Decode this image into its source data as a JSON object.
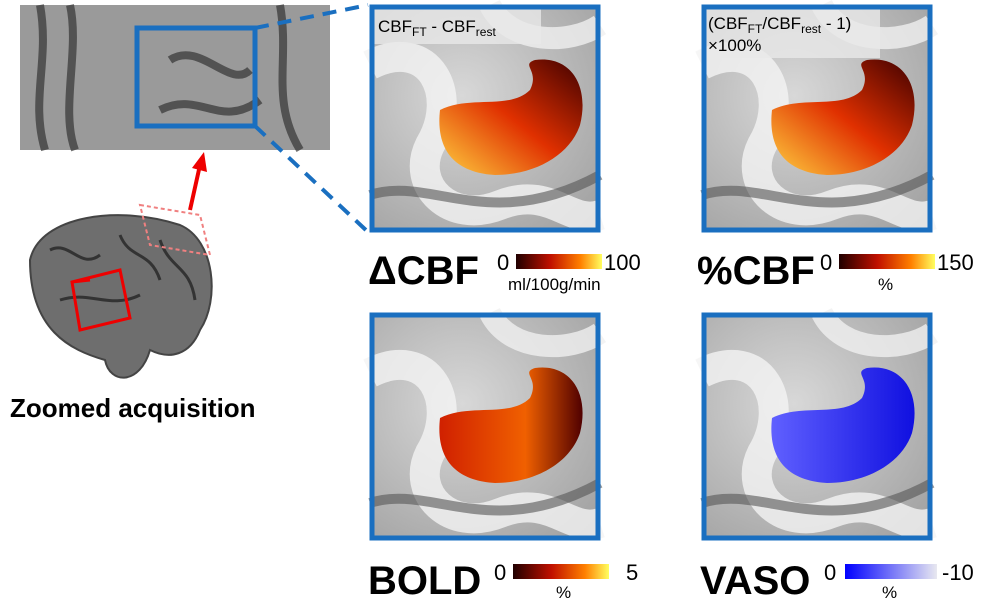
{
  "zoom": {
    "label": "Zoomed acquisition"
  },
  "panels": [
    {
      "label": "ΔCBF",
      "formula": {
        "line1": [
          "CBF",
          "FT",
          " - CBF",
          "rest"
        ]
      },
      "colorbar": {
        "min": 0,
        "max": 100,
        "unit": "ml/100g/min"
      }
    },
    {
      "label": "%CBF",
      "formula": {
        "line1": [
          "(CBF",
          "FT",
          "/CBF",
          "rest",
          " - 1)"
        ],
        "line2": "×100%"
      },
      "colorbar": {
        "min": 0,
        "max": 150,
        "unit": "%"
      }
    },
    {
      "label": "BOLD",
      "colorbar": {
        "min": 0,
        "max": 5,
        "unit": "%"
      }
    },
    {
      "label": "VASO",
      "colorbar": {
        "min": 0,
        "max": -10,
        "unit": "%"
      }
    }
  ]
}
